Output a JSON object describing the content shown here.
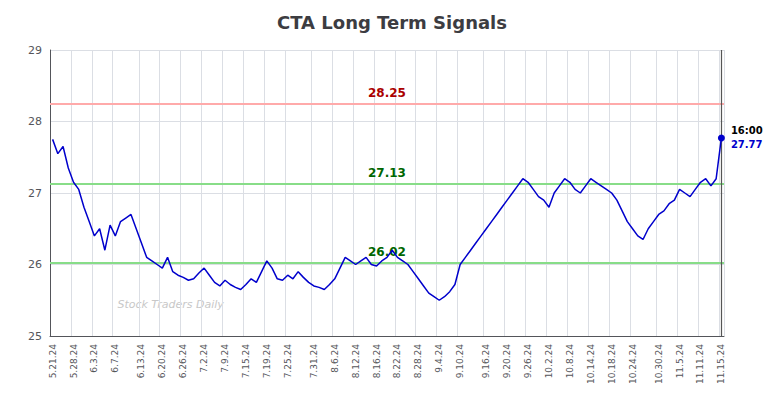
{
  "chart_data": {
    "type": "line",
    "title": "CTA Long Term Signals",
    "color": "#0000cc",
    "grid": true,
    "ylim": [
      25,
      29
    ],
    "yticks": [
      25,
      26,
      27,
      28,
      29
    ],
    "reference_lines": [
      {
        "value": 28.25,
        "color": "#ffaaaa",
        "label_color": "#aa0000"
      },
      {
        "value": 27.13,
        "color": "#88dd88",
        "label_color": "#006600"
      },
      {
        "value": 26.02,
        "color": "#88dd88",
        "label_color": "#006600"
      }
    ],
    "last_time": "16:00",
    "last_price": 27.77,
    "last_label_color": "#0000cc",
    "watermark": "Stock Traders Daily",
    "watermark_color": "#c8c8c8",
    "categories": [
      "5.21.24",
      null,
      null,
      null,
      "5.28.24",
      null,
      null,
      null,
      "6.3.24",
      null,
      null,
      null,
      "6.7.24",
      null,
      null,
      null,
      null,
      "6.13.24",
      null,
      null,
      null,
      "6.20.24",
      null,
      null,
      null,
      "6.26.24",
      null,
      null,
      null,
      "7.2.24",
      null,
      null,
      null,
      "7.9.24",
      null,
      null,
      null,
      "7.15.24",
      null,
      null,
      null,
      "7.19.24",
      null,
      null,
      null,
      "7.25.24",
      null,
      null,
      null,
      null,
      "7.31.24",
      null,
      null,
      null,
      "8.6.24",
      null,
      null,
      null,
      "8.12.24",
      null,
      null,
      null,
      "8.16.24",
      null,
      null,
      null,
      "8.22.24",
      null,
      null,
      null,
      "8.28.24",
      null,
      null,
      null,
      "9.4.24",
      null,
      null,
      null,
      "9.10.24",
      null,
      null,
      null,
      null,
      "9.16.24",
      null,
      null,
      null,
      "9.20.24",
      null,
      null,
      null,
      "9.26.24",
      null,
      null,
      null,
      "10.2.24",
      null,
      null,
      null,
      "10.8.24",
      null,
      null,
      null,
      "10.14.24",
      null,
      null,
      null,
      "10.18.24",
      null,
      null,
      null,
      "10.24.24",
      null,
      null,
      null,
      null,
      "10.30.24",
      null,
      null,
      null,
      "11.5.24",
      null,
      null,
      null,
      "11.11.24",
      null,
      null,
      null,
      "11.15.24"
    ],
    "values": [
      27.75,
      27.55,
      27.65,
      27.35,
      27.15,
      27.05,
      26.8,
      26.6,
      26.4,
      26.5,
      26.2,
      26.55,
      26.4,
      26.6,
      26.65,
      26.7,
      26.5,
      26.3,
      26.1,
      26.05,
      26.0,
      25.95,
      26.1,
      25.9,
      25.85,
      25.82,
      25.78,
      25.8,
      25.88,
      25.95,
      25.85,
      25.75,
      25.7,
      25.78,
      25.72,
      25.68,
      25.65,
      25.72,
      25.8,
      25.75,
      25.9,
      26.05,
      25.95,
      25.8,
      25.78,
      25.85,
      25.8,
      25.9,
      25.82,
      25.75,
      25.7,
      25.68,
      25.65,
      25.72,
      25.8,
      25.95,
      26.1,
      26.05,
      26.0,
      26.05,
      26.1,
      26.0,
      25.98,
      26.05,
      26.1,
      26.2,
      26.1,
      26.05,
      26.0,
      25.9,
      25.8,
      25.7,
      25.6,
      25.55,
      25.5,
      25.55,
      25.62,
      25.72,
      26.0,
      26.1,
      26.2,
      26.3,
      26.4,
      26.5,
      26.6,
      26.7,
      26.8,
      26.9,
      27.0,
      27.1,
      27.2,
      27.15,
      27.05,
      26.95,
      26.9,
      26.8,
      27.0,
      27.1,
      27.2,
      27.15,
      27.05,
      27.0,
      27.1,
      27.2,
      27.15,
      27.1,
      27.05,
      27.0,
      26.9,
      26.75,
      26.6,
      26.5,
      26.4,
      26.35,
      26.5,
      26.6,
      26.7,
      26.75,
      26.85,
      26.9,
      27.05,
      27.0,
      26.95,
      27.05,
      27.15,
      27.2,
      27.1,
      27.2,
      27.77
    ]
  }
}
